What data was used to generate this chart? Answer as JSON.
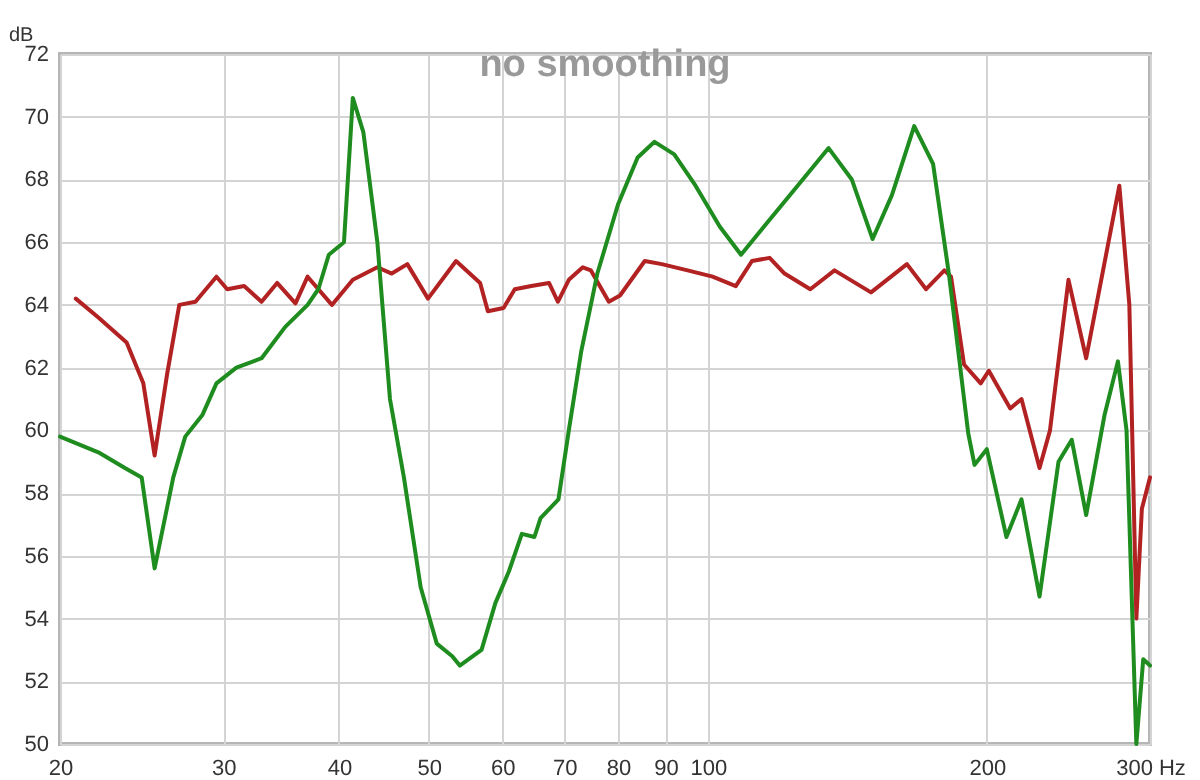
{
  "chart_data": {
    "type": "line",
    "title": "no smoothing",
    "ylabel": "dB",
    "xlim": [
      20,
      300
    ],
    "ylim": [
      50,
      72
    ],
    "xticks": [
      20,
      30,
      40,
      50,
      60,
      70,
      80,
      90,
      100,
      200,
      {
        "value": 300,
        "label": "300 Hz"
      }
    ],
    "yticks": [
      50,
      52,
      54,
      56,
      58,
      60,
      62,
      64,
      66,
      68,
      70,
      72
    ],
    "log": "x",
    "grid": true,
    "marker": "none",
    "line_style": "solid",
    "series": [
      {
        "color": "#b22222",
        "x": [
          20.8,
          22,
          23.6,
          24.6,
          25.3,
          26.1,
          26.9,
          28,
          29.5,
          30.3,
          31.6,
          33,
          34.3,
          35.9,
          37,
          39.3,
          41.4,
          44,
          45.6,
          47.4,
          49.9,
          53.5,
          56.8,
          57.9,
          60.2,
          61.9,
          64.5,
          67.4,
          68.9,
          70.8,
          73.3,
          74.8,
          78.2,
          80.4,
          85.5,
          89.2,
          95.1,
          101.2,
          107.2,
          111.6,
          116.6,
          121,
          129,
          137,
          150,
          164,
          172,
          180,
          183,
          189,
          197,
          201,
          212,
          218,
          228,
          234,
          245,
          256,
          278,
          285,
          290,
          294,
          300
        ],
        "values": [
          64.2,
          63.6,
          62.8,
          61.5,
          59.2,
          61.8,
          64,
          64.1,
          64.9,
          64.5,
          64.6,
          64.1,
          64.7,
          64.05,
          64.9,
          64,
          64.8,
          65.2,
          65,
          65.3,
          64.2,
          65.4,
          64.7,
          63.8,
          63.9,
          64.5,
          64.6,
          64.7,
          64.1,
          64.8,
          65.2,
          65.1,
          64.1,
          64.3,
          65.4,
          65.3,
          65.1,
          64.9,
          64.6,
          65.4,
          65.5,
          65,
          64.5,
          65.1,
          64.4,
          65.3,
          64.5,
          65.1,
          64.9,
          62.1,
          61.5,
          61.9,
          60.7,
          61,
          58.8,
          60,
          64.8,
          62.3,
          67.8,
          64,
          54,
          57.5,
          58.5
        ]
      },
      {
        "color": "#1e8c1e",
        "x": [
          20,
          22,
          23.5,
          24.5,
          25.3,
          26.5,
          27.3,
          28.5,
          29.5,
          31,
          33,
          35,
          37,
          38,
          39,
          40.5,
          41.4,
          42.5,
          44,
          45.4,
          47,
          49,
          51,
          53,
          54,
          57,
          59,
          61,
          63,
          65,
          66,
          69,
          70.8,
          73,
          76,
          80,
          84,
          87.6,
          92,
          97,
          103,
          108.6,
          115,
          125,
          135,
          143,
          150.6,
          158,
          167,
          175,
          182,
          191,
          194,
          200,
          210,
          218,
          228,
          239,
          247,
          256,
          268,
          277,
          283,
          290,
          295,
          300
        ],
        "values": [
          59.8,
          59.3,
          58.8,
          58.5,
          55.6,
          58.5,
          59.8,
          60.5,
          61.5,
          62,
          62.3,
          63.3,
          64,
          64.5,
          65.6,
          66,
          70.6,
          69.5,
          66,
          61,
          58.5,
          55,
          53.2,
          52.8,
          52.5,
          53,
          54.5,
          55.5,
          56.7,
          56.6,
          57.2,
          57.8,
          60,
          62.5,
          65,
          67.2,
          68.7,
          69.2,
          68.8,
          67.8,
          66.5,
          65.6,
          66.5,
          67.8,
          69,
          68,
          66.1,
          67.5,
          69.7,
          68.5,
          65,
          59.9,
          58.9,
          59.4,
          56.6,
          57.8,
          54.7,
          59,
          59.7,
          57.3,
          60.5,
          62.2,
          60,
          50,
          52.7,
          52.5
        ]
      }
    ]
  }
}
